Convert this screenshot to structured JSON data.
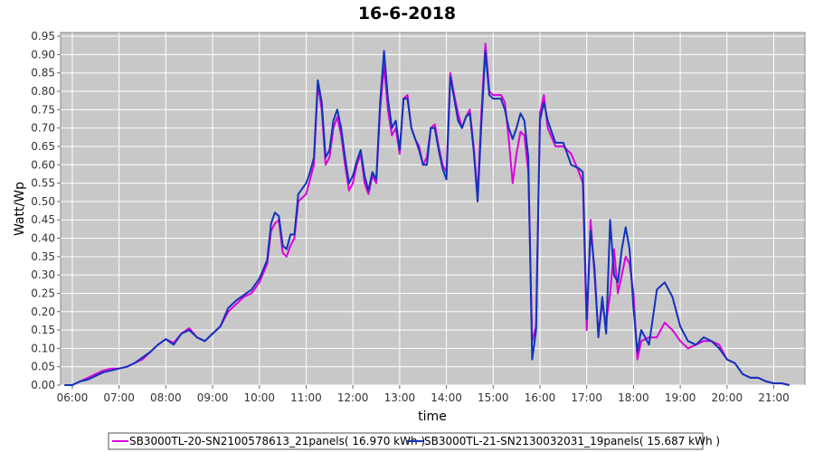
{
  "chart_data": {
    "type": "line",
    "title": "16-6-2018",
    "xlabel": "time",
    "ylabel": "Watt/Wp",
    "xlim": [
      "05:45",
      "21:40"
    ],
    "ylim": [
      0,
      0.96
    ],
    "x_ticks": [
      "06:00",
      "07:00",
      "08:00",
      "09:00",
      "10:00",
      "11:00",
      "12:00",
      "13:00",
      "14:00",
      "15:00",
      "16:00",
      "17:00",
      "18:00",
      "19:00",
      "20:00",
      "21:00"
    ],
    "y_ticks": [
      "0.00",
      "0.05",
      "0.10",
      "0.15",
      "0.20",
      "0.25",
      "0.30",
      "0.35",
      "0.40",
      "0.45",
      "0.50",
      "0.55",
      "0.60",
      "0.65",
      "0.70",
      "0.75",
      "0.80",
      "0.85",
      "0.90",
      "0.95"
    ],
    "grid": true,
    "legend_position": "bottom",
    "background_color": "#c8c8c8",
    "series": [
      {
        "name": "SB3000TL-20-SN2100578613_21panels( 16.970 kWh )",
        "color": "#dd00dd",
        "points": [
          [
            "05:50",
            0.0
          ],
          [
            "06:00",
            0.0
          ],
          [
            "06:10",
            0.01
          ],
          [
            "06:20",
            0.02
          ],
          [
            "06:30",
            0.03
          ],
          [
            "06:40",
            0.04
          ],
          [
            "06:50",
            0.045
          ],
          [
            "07:00",
            0.045
          ],
          [
            "07:10",
            0.05
          ],
          [
            "07:20",
            0.06
          ],
          [
            "07:30",
            0.07
          ],
          [
            "07:40",
            0.09
          ],
          [
            "07:50",
            0.11
          ],
          [
            "08:00",
            0.125
          ],
          [
            "08:10",
            0.115
          ],
          [
            "08:20",
            0.14
          ],
          [
            "08:30",
            0.155
          ],
          [
            "08:40",
            0.13
          ],
          [
            "08:50",
            0.12
          ],
          [
            "09:00",
            0.14
          ],
          [
            "09:10",
            0.16
          ],
          [
            "09:20",
            0.2
          ],
          [
            "09:30",
            0.22
          ],
          [
            "09:40",
            0.24
          ],
          [
            "09:50",
            0.25
          ],
          [
            "10:00",
            0.28
          ],
          [
            "10:10",
            0.33
          ],
          [
            "10:15",
            0.42
          ],
          [
            "10:20",
            0.44
          ],
          [
            "10:25",
            0.45
          ],
          [
            "10:30",
            0.36
          ],
          [
            "10:35",
            0.35
          ],
          [
            "10:40",
            0.38
          ],
          [
            "10:45",
            0.4
          ],
          [
            "10:50",
            0.5
          ],
          [
            "11:00",
            0.52
          ],
          [
            "11:05",
            0.56
          ],
          [
            "11:10",
            0.6
          ],
          [
            "11:15",
            0.82
          ],
          [
            "11:20",
            0.75
          ],
          [
            "11:25",
            0.6
          ],
          [
            "11:30",
            0.62
          ],
          [
            "11:35",
            0.7
          ],
          [
            "11:40",
            0.73
          ],
          [
            "11:45",
            0.68
          ],
          [
            "11:50",
            0.6
          ],
          [
            "11:55",
            0.53
          ],
          [
            "12:00",
            0.55
          ],
          [
            "12:05",
            0.6
          ],
          [
            "12:10",
            0.63
          ],
          [
            "12:15",
            0.55
          ],
          [
            "12:20",
            0.52
          ],
          [
            "12:25",
            0.57
          ],
          [
            "12:30",
            0.55
          ],
          [
            "12:35",
            0.75
          ],
          [
            "12:40",
            0.87
          ],
          [
            "12:45",
            0.75
          ],
          [
            "12:50",
            0.68
          ],
          [
            "12:55",
            0.7
          ],
          [
            "13:00",
            0.63
          ],
          [
            "13:05",
            0.78
          ],
          [
            "13:10",
            0.79
          ],
          [
            "13:15",
            0.7
          ],
          [
            "13:20",
            0.67
          ],
          [
            "13:25",
            0.65
          ],
          [
            "13:30",
            0.6
          ],
          [
            "13:35",
            0.62
          ],
          [
            "13:40",
            0.7
          ],
          [
            "13:45",
            0.71
          ],
          [
            "13:50",
            0.65
          ],
          [
            "13:55",
            0.6
          ],
          [
            "14:00",
            0.58
          ],
          [
            "14:05",
            0.85
          ],
          [
            "14:10",
            0.79
          ],
          [
            "14:15",
            0.74
          ],
          [
            "14:20",
            0.7
          ],
          [
            "14:25",
            0.73
          ],
          [
            "14:30",
            0.75
          ],
          [
            "14:35",
            0.65
          ],
          [
            "14:40",
            0.52
          ],
          [
            "14:45",
            0.75
          ],
          [
            "14:50",
            0.93
          ],
          [
            "14:55",
            0.8
          ],
          [
            "15:00",
            0.79
          ],
          [
            "15:10",
            0.79
          ],
          [
            "15:15",
            0.77
          ],
          [
            "15:20",
            0.67
          ],
          [
            "15:25",
            0.55
          ],
          [
            "15:30",
            0.63
          ],
          [
            "15:35",
            0.69
          ],
          [
            "15:40",
            0.68
          ],
          [
            "15:45",
            0.58
          ],
          [
            "15:50",
            0.12
          ],
          [
            "15:55",
            0.16
          ],
          [
            "16:00",
            0.74
          ],
          [
            "16:05",
            0.79
          ],
          [
            "16:10",
            0.7
          ],
          [
            "16:20",
            0.65
          ],
          [
            "16:30",
            0.65
          ],
          [
            "16:40",
            0.63
          ],
          [
            "16:50",
            0.58
          ],
          [
            "16:55",
            0.55
          ],
          [
            "17:00",
            0.15
          ],
          [
            "17:05",
            0.45
          ],
          [
            "17:10",
            0.3
          ],
          [
            "17:15",
            0.14
          ],
          [
            "17:20",
            0.22
          ],
          [
            "17:25",
            0.17
          ],
          [
            "17:30",
            0.25
          ],
          [
            "17:35",
            0.37
          ],
          [
            "17:40",
            0.25
          ],
          [
            "17:45",
            0.3
          ],
          [
            "17:50",
            0.35
          ],
          [
            "17:55",
            0.33
          ],
          [
            "18:00",
            0.25
          ],
          [
            "18:05",
            0.07
          ],
          [
            "18:10",
            0.12
          ],
          [
            "18:20",
            0.13
          ],
          [
            "18:30",
            0.13
          ],
          [
            "18:40",
            0.17
          ],
          [
            "18:50",
            0.15
          ],
          [
            "19:00",
            0.12
          ],
          [
            "19:10",
            0.1
          ],
          [
            "19:20",
            0.11
          ],
          [
            "19:30",
            0.12
          ],
          [
            "19:40",
            0.12
          ],
          [
            "19:50",
            0.11
          ],
          [
            "20:00",
            0.07
          ],
          [
            "20:10",
            0.06
          ],
          [
            "20:20",
            0.03
          ],
          [
            "20:30",
            0.02
          ],
          [
            "20:40",
            0.02
          ],
          [
            "20:50",
            0.01
          ],
          [
            "21:00",
            0.005
          ],
          [
            "21:10",
            0.005
          ],
          [
            "21:20",
            0.0
          ]
        ]
      },
      {
        "name": "SB3000TL-21-SN2130032031_19panels( 15.687 kWh )",
        "color": "#1133bb",
        "points": [
          [
            "05:50",
            0.0
          ],
          [
            "06:00",
            0.0
          ],
          [
            "06:10",
            0.01
          ],
          [
            "06:20",
            0.015
          ],
          [
            "06:30",
            0.025
          ],
          [
            "06:40",
            0.035
          ],
          [
            "06:50",
            0.04
          ],
          [
            "07:00",
            0.045
          ],
          [
            "07:10",
            0.05
          ],
          [
            "07:20",
            0.06
          ],
          [
            "07:30",
            0.075
          ],
          [
            "07:40",
            0.09
          ],
          [
            "07:50",
            0.11
          ],
          [
            "08:00",
            0.125
          ],
          [
            "08:10",
            0.11
          ],
          [
            "08:20",
            0.14
          ],
          [
            "08:30",
            0.15
          ],
          [
            "08:40",
            0.13
          ],
          [
            "08:50",
            0.12
          ],
          [
            "09:00",
            0.14
          ],
          [
            "09:10",
            0.16
          ],
          [
            "09:20",
            0.21
          ],
          [
            "09:30",
            0.23
          ],
          [
            "09:40",
            0.245
          ],
          [
            "09:50",
            0.26
          ],
          [
            "10:00",
            0.29
          ],
          [
            "10:10",
            0.34
          ],
          [
            "10:15",
            0.44
          ],
          [
            "10:20",
            0.47
          ],
          [
            "10:25",
            0.46
          ],
          [
            "10:30",
            0.38
          ],
          [
            "10:35",
            0.37
          ],
          [
            "10:40",
            0.41
          ],
          [
            "10:45",
            0.41
          ],
          [
            "10:50",
            0.52
          ],
          [
            "11:00",
            0.55
          ],
          [
            "11:05",
            0.58
          ],
          [
            "11:10",
            0.62
          ],
          [
            "11:15",
            0.83
          ],
          [
            "11:20",
            0.77
          ],
          [
            "11:25",
            0.62
          ],
          [
            "11:30",
            0.64
          ],
          [
            "11:35",
            0.72
          ],
          [
            "11:40",
            0.75
          ],
          [
            "11:45",
            0.7
          ],
          [
            "11:50",
            0.62
          ],
          [
            "11:55",
            0.55
          ],
          [
            "12:00",
            0.57
          ],
          [
            "12:05",
            0.61
          ],
          [
            "12:10",
            0.64
          ],
          [
            "12:15",
            0.57
          ],
          [
            "12:20",
            0.53
          ],
          [
            "12:25",
            0.58
          ],
          [
            "12:30",
            0.56
          ],
          [
            "12:35",
            0.77
          ],
          [
            "12:40",
            0.91
          ],
          [
            "12:45",
            0.78
          ],
          [
            "12:50",
            0.7
          ],
          [
            "12:55",
            0.72
          ],
          [
            "13:00",
            0.64
          ],
          [
            "13:05",
            0.78
          ],
          [
            "13:10",
            0.78
          ],
          [
            "13:15",
            0.7
          ],
          [
            "13:20",
            0.67
          ],
          [
            "13:25",
            0.64
          ],
          [
            "13:30",
            0.6
          ],
          [
            "13:35",
            0.6
          ],
          [
            "13:40",
            0.7
          ],
          [
            "13:45",
            0.7
          ],
          [
            "13:50",
            0.64
          ],
          [
            "13:55",
            0.59
          ],
          [
            "14:00",
            0.56
          ],
          [
            "14:05",
            0.84
          ],
          [
            "14:10",
            0.78
          ],
          [
            "14:15",
            0.72
          ],
          [
            "14:20",
            0.7
          ],
          [
            "14:25",
            0.73
          ],
          [
            "14:30",
            0.74
          ],
          [
            "14:35",
            0.64
          ],
          [
            "14:40",
            0.5
          ],
          [
            "14:45",
            0.72
          ],
          [
            "14:50",
            0.91
          ],
          [
            "14:55",
            0.79
          ],
          [
            "15:00",
            0.78
          ],
          [
            "15:10",
            0.78
          ],
          [
            "15:15",
            0.75
          ],
          [
            "15:20",
            0.7
          ],
          [
            "15:25",
            0.67
          ],
          [
            "15:30",
            0.7
          ],
          [
            "15:35",
            0.74
          ],
          [
            "15:40",
            0.72
          ],
          [
            "15:45",
            0.62
          ],
          [
            "15:50",
            0.07
          ],
          [
            "15:55",
            0.15
          ],
          [
            "16:00",
            0.72
          ],
          [
            "16:05",
            0.77
          ],
          [
            "16:10",
            0.72
          ],
          [
            "16:20",
            0.66
          ],
          [
            "16:30",
            0.66
          ],
          [
            "16:40",
            0.6
          ],
          [
            "16:50",
            0.59
          ],
          [
            "16:55",
            0.58
          ],
          [
            "17:00",
            0.18
          ],
          [
            "17:05",
            0.42
          ],
          [
            "17:10",
            0.32
          ],
          [
            "17:15",
            0.13
          ],
          [
            "17:20",
            0.24
          ],
          [
            "17:25",
            0.14
          ],
          [
            "17:30",
            0.45
          ],
          [
            "17:35",
            0.3
          ],
          [
            "17:40",
            0.28
          ],
          [
            "17:45",
            0.37
          ],
          [
            "17:50",
            0.43
          ],
          [
            "17:55",
            0.37
          ],
          [
            "18:00",
            0.21
          ],
          [
            "18:05",
            0.09
          ],
          [
            "18:10",
            0.15
          ],
          [
            "18:15",
            0.13
          ],
          [
            "18:20",
            0.11
          ],
          [
            "18:30",
            0.26
          ],
          [
            "18:40",
            0.28
          ],
          [
            "18:50",
            0.24
          ],
          [
            "19:00",
            0.16
          ],
          [
            "19:10",
            0.12
          ],
          [
            "19:20",
            0.11
          ],
          [
            "19:30",
            0.13
          ],
          [
            "19:40",
            0.12
          ],
          [
            "19:50",
            0.1
          ],
          [
            "20:00",
            0.07
          ],
          [
            "20:10",
            0.06
          ],
          [
            "20:20",
            0.03
          ],
          [
            "20:30",
            0.02
          ],
          [
            "20:40",
            0.02
          ],
          [
            "20:50",
            0.01
          ],
          [
            "21:00",
            0.005
          ],
          [
            "21:10",
            0.005
          ],
          [
            "21:20",
            0.0
          ]
        ]
      }
    ]
  }
}
